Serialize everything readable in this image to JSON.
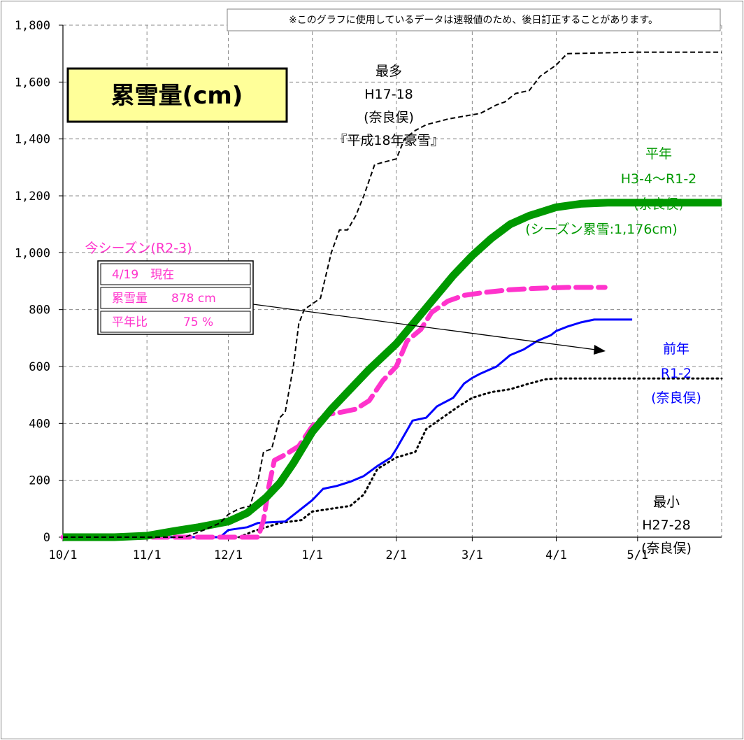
{
  "chart_data": {
    "type": "line",
    "title": "累雪量(cm)",
    "note": "※このグラフに使用しているデータは速報値のため、後日訂正することがあります。",
    "x_ticks": [
      "10/1",
      "11/1",
      "12/1",
      "1/1",
      "2/1",
      "3/1",
      "4/1",
      "5/1"
    ],
    "x_range": [
      "10/1",
      "6/1"
    ],
    "y_ticks": [
      "0",
      "200",
      "400",
      "600",
      "800",
      "1,000",
      "1,200",
      "1,400",
      "1,600",
      "1,800"
    ],
    "ylim": [
      0,
      1800
    ],
    "grid": true,
    "series": [
      {
        "label_lines": [
          "最多",
          "H17-18",
          "(奈良俣)",
          "『平成18年豪雪』"
        ],
        "color": "#000000",
        "style": "dashed-thin",
        "points": [
          [
            "10/1",
            0
          ],
          [
            "11/15",
            0
          ],
          [
            "11/22",
            25
          ],
          [
            "11/28",
            50
          ],
          [
            "12/1",
            80
          ],
          [
            "12/5",
            100
          ],
          [
            "12/9",
            110
          ],
          [
            "12/12",
            200
          ],
          [
            "12/14",
            300
          ],
          [
            "12/17",
            310
          ],
          [
            "12/20",
            420
          ],
          [
            "12/22",
            440
          ],
          [
            "12/25",
            600
          ],
          [
            "12/27",
            750
          ],
          [
            "12/29",
            800
          ],
          [
            "1/1",
            820
          ],
          [
            "1/4",
            840
          ],
          [
            "1/8",
            1000
          ],
          [
            "1/11",
            1080
          ],
          [
            "1/14",
            1080
          ],
          [
            "1/17",
            1130
          ],
          [
            "1/20",
            1200
          ],
          [
            "1/24",
            1310
          ],
          [
            "1/28",
            1320
          ],
          [
            "2/1",
            1330
          ],
          [
            "2/4",
            1400
          ],
          [
            "2/8",
            1430
          ],
          [
            "2/12",
            1450
          ],
          [
            "2/16",
            1460
          ],
          [
            "2/20",
            1470
          ],
          [
            "2/26",
            1480
          ],
          [
            "3/4",
            1490
          ],
          [
            "3/10",
            1520
          ],
          [
            "3/13",
            1530
          ],
          [
            "3/17",
            1560
          ],
          [
            "3/22",
            1570
          ],
          [
            "3/26",
            1620
          ],
          [
            "4/1",
            1660
          ],
          [
            "4/5",
            1700
          ],
          [
            "5/1",
            1705
          ],
          [
            "6/1",
            1705
          ]
        ]
      },
      {
        "label_lines": [
          "平年",
          "H3-4～R1-2",
          "(奈良俣)",
          "(シーズン累雪:1,176cm)"
        ],
        "color": "#009900",
        "style": "solid-thick",
        "points": [
          [
            "10/1",
            0
          ],
          [
            "10/20",
            0
          ],
          [
            "11/1",
            5
          ],
          [
            "11/10",
            20
          ],
          [
            "11/20",
            35
          ],
          [
            "12/1",
            55
          ],
          [
            "12/8",
            85
          ],
          [
            "12/15",
            140
          ],
          [
            "12/20",
            190
          ],
          [
            "12/25",
            260
          ],
          [
            "1/1",
            370
          ],
          [
            "1/8",
            450
          ],
          [
            "1/15",
            520
          ],
          [
            "1/22",
            590
          ],
          [
            "2/1",
            680
          ],
          [
            "2/8",
            760
          ],
          [
            "2/15",
            840
          ],
          [
            "2/22",
            920
          ],
          [
            "3/1",
            990
          ],
          [
            "3/8",
            1050
          ],
          [
            "3/15",
            1100
          ],
          [
            "3/22",
            1130
          ],
          [
            "4/1",
            1160
          ],
          [
            "4/10",
            1172
          ],
          [
            "4/20",
            1176
          ],
          [
            "6/1",
            1176
          ]
        ]
      },
      {
        "label_lines": [
          "今シーズン(R2-3)"
        ],
        "color": "#ff33cc",
        "style": "dashed-thick",
        "points": [
          [
            "10/1",
            0
          ],
          [
            "12/12",
            0
          ],
          [
            "12/14",
            60
          ],
          [
            "12/16",
            180
          ],
          [
            "12/18",
            270
          ],
          [
            "12/22",
            290
          ],
          [
            "12/27",
            320
          ],
          [
            "1/1",
            390
          ],
          [
            "1/6",
            430
          ],
          [
            "1/12",
            440
          ],
          [
            "1/17",
            450
          ],
          [
            "1/22",
            480
          ],
          [
            "1/27",
            550
          ],
          [
            "2/1",
            600
          ],
          [
            "2/5",
            690
          ],
          [
            "2/10",
            730
          ],
          [
            "2/14",
            790
          ],
          [
            "2/20",
            830
          ],
          [
            "2/26",
            850
          ],
          [
            "3/5",
            860
          ],
          [
            "3/15",
            870
          ],
          [
            "3/25",
            875
          ],
          [
            "4/5",
            878
          ],
          [
            "4/19",
            878
          ]
        ]
      },
      {
        "label_lines": [
          "前年",
          "R1-2",
          "(奈良俣)"
        ],
        "color": "#0000ff",
        "style": "solid",
        "points": [
          [
            "10/1",
            0
          ],
          [
            "11/28",
            0
          ],
          [
            "12/1",
            25
          ],
          [
            "12/8",
            35
          ],
          [
            "12/12",
            50
          ],
          [
            "12/22",
            55
          ],
          [
            "12/28",
            100
          ],
          [
            "1/1",
            130
          ],
          [
            "1/5",
            170
          ],
          [
            "1/10",
            180
          ],
          [
            "1/15",
            195
          ],
          [
            "1/20",
            215
          ],
          [
            "1/25",
            250
          ],
          [
            "1/30",
            280
          ],
          [
            "2/1",
            310
          ],
          [
            "2/4",
            360
          ],
          [
            "2/7",
            410
          ],
          [
            "2/12",
            420
          ],
          [
            "2/16",
            460
          ],
          [
            "2/22",
            490
          ],
          [
            "2/26",
            540
          ],
          [
            "3/1",
            560
          ],
          [
            "3/4",
            575
          ],
          [
            "3/10",
            600
          ],
          [
            "3/15",
            640
          ],
          [
            "3/20",
            660
          ],
          [
            "3/25",
            690
          ],
          [
            "3/30",
            710
          ],
          [
            "4/1",
            725
          ],
          [
            "4/5",
            740
          ],
          [
            "4/10",
            755
          ],
          [
            "4/15",
            765
          ],
          [
            "4/29",
            765
          ]
        ]
      },
      {
        "label_lines": [
          "最小",
          "H27-28",
          "(奈良俣)"
        ],
        "color": "#000000",
        "style": "dotted",
        "points": [
          [
            "10/1",
            0
          ],
          [
            "12/5",
            0
          ],
          [
            "12/10",
            20
          ],
          [
            "12/20",
            50
          ],
          [
            "12/28",
            60
          ],
          [
            "1/1",
            90
          ],
          [
            "1/8",
            100
          ],
          [
            "1/15",
            110
          ],
          [
            "1/20",
            150
          ],
          [
            "1/25",
            240
          ],
          [
            "2/1",
            280
          ],
          [
            "2/8",
            300
          ],
          [
            "2/12",
            380
          ],
          [
            "2/18",
            420
          ],
          [
            "2/24",
            460
          ],
          [
            "3/1",
            490
          ],
          [
            "3/8",
            510
          ],
          [
            "3/15",
            520
          ],
          [
            "3/22",
            540
          ],
          [
            "3/28",
            555
          ],
          [
            "4/1",
            558
          ],
          [
            "6/1",
            558
          ]
        ]
      }
    ],
    "info_box": {
      "rows": [
        "4/19　現在",
        "累雪量　　878 cm",
        "平年比　　　75 %"
      ]
    }
  }
}
